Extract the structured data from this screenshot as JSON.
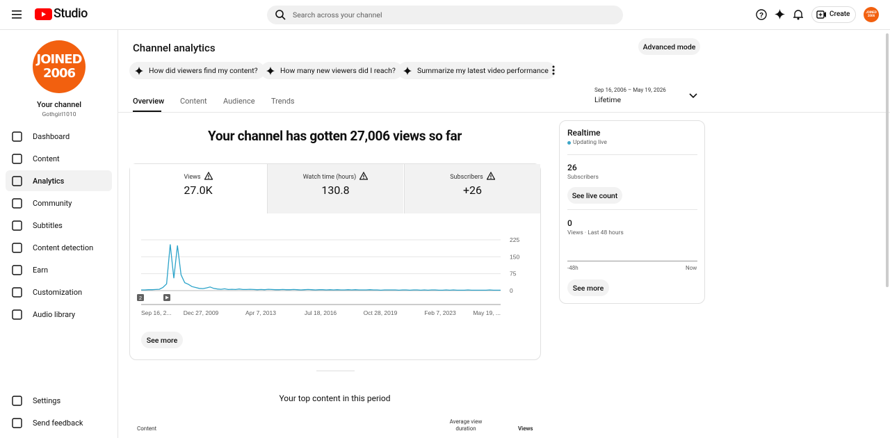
{
  "header": {
    "logo_text": "Studio",
    "search_placeholder": "Search across your channel",
    "create": "Create",
    "avatar": "JOINED 2006"
  },
  "sidebar": {
    "avatar_line1": "JOINED",
    "avatar_line2": "2006",
    "channel_title": "Your channel",
    "handle": "Gothgirl1010",
    "nav": [
      "Dashboard",
      "Content",
      "Analytics",
      "Community",
      "Subtitles",
      "Content detection",
      "Earn",
      "Customization",
      "Audio library"
    ],
    "footer": [
      "Settings",
      "Send feedback"
    ]
  },
  "main": {
    "title": "Channel analytics",
    "advanced": "Advanced mode",
    "chips": [
      "How did viewers find my content?",
      "How many new viewers did I reach?",
      "Summarize my latest video performance"
    ],
    "tabs": [
      "Overview",
      "Content",
      "Audience",
      "Trends"
    ],
    "date_range": "Sep 16, 2006 – May 19, 2026",
    "period": "Lifetime",
    "headline": "Your channel has gotten 27,006 views so far",
    "metrics": [
      {
        "label": "Views",
        "value": "27.0K"
      },
      {
        "label": "Watch time (hours)",
        "value": "130.8"
      },
      {
        "label": "Subscribers",
        "value": "+26"
      }
    ],
    "see_more": "See more",
    "top_content_title": "Your top content in this period",
    "table_headers": [
      "Content",
      "Average view duration",
      "Views"
    ]
  },
  "realtime": {
    "title": "Realtime",
    "status": "Updating live",
    "subs_value": "26",
    "subs_label": "Subscribers",
    "live_button": "See live count",
    "views_value": "0",
    "views_label": "Views · Last 48 hours",
    "axis_start": "-48h",
    "axis_end": "Now",
    "see_more": "See more"
  },
  "chart_data": {
    "type": "line",
    "color": "#2ba3c9",
    "ylim": [
      0,
      225
    ],
    "yticks": [
      0,
      75,
      150,
      225
    ],
    "grid": true,
    "xtick_labels": [
      "Sep 16, 2...",
      "Dec 27, 2009",
      "Apr 7, 2013",
      "Jul 18, 2016",
      "Oct 28, 2019",
      "Feb 7, 2023",
      "May 19, ..."
    ],
    "badges": [
      "2"
    ],
    "values": [
      3,
      3,
      4,
      4,
      5,
      6,
      14,
      30,
      205,
      55,
      200,
      70,
      35,
      28,
      18,
      14,
      10,
      9,
      12,
      16,
      10,
      7,
      6,
      8,
      5,
      6,
      5,
      7,
      5,
      5,
      6,
      5,
      4,
      5,
      4,
      6,
      5,
      4,
      4,
      5,
      4,
      4,
      5,
      4,
      3,
      4,
      5,
      4,
      3,
      4,
      4,
      3,
      4,
      3,
      4,
      3,
      3,
      4,
      3,
      4,
      3,
      3,
      3,
      4,
      3,
      3,
      2,
      3,
      3,
      3,
      3,
      2,
      3,
      3,
      2,
      3,
      3,
      2,
      3,
      2,
      3,
      3,
      2,
      2,
      3,
      2,
      3,
      2,
      2,
      2,
      3,
      2,
      2,
      2,
      2,
      2,
      3,
      2,
      2,
      2
    ]
  }
}
